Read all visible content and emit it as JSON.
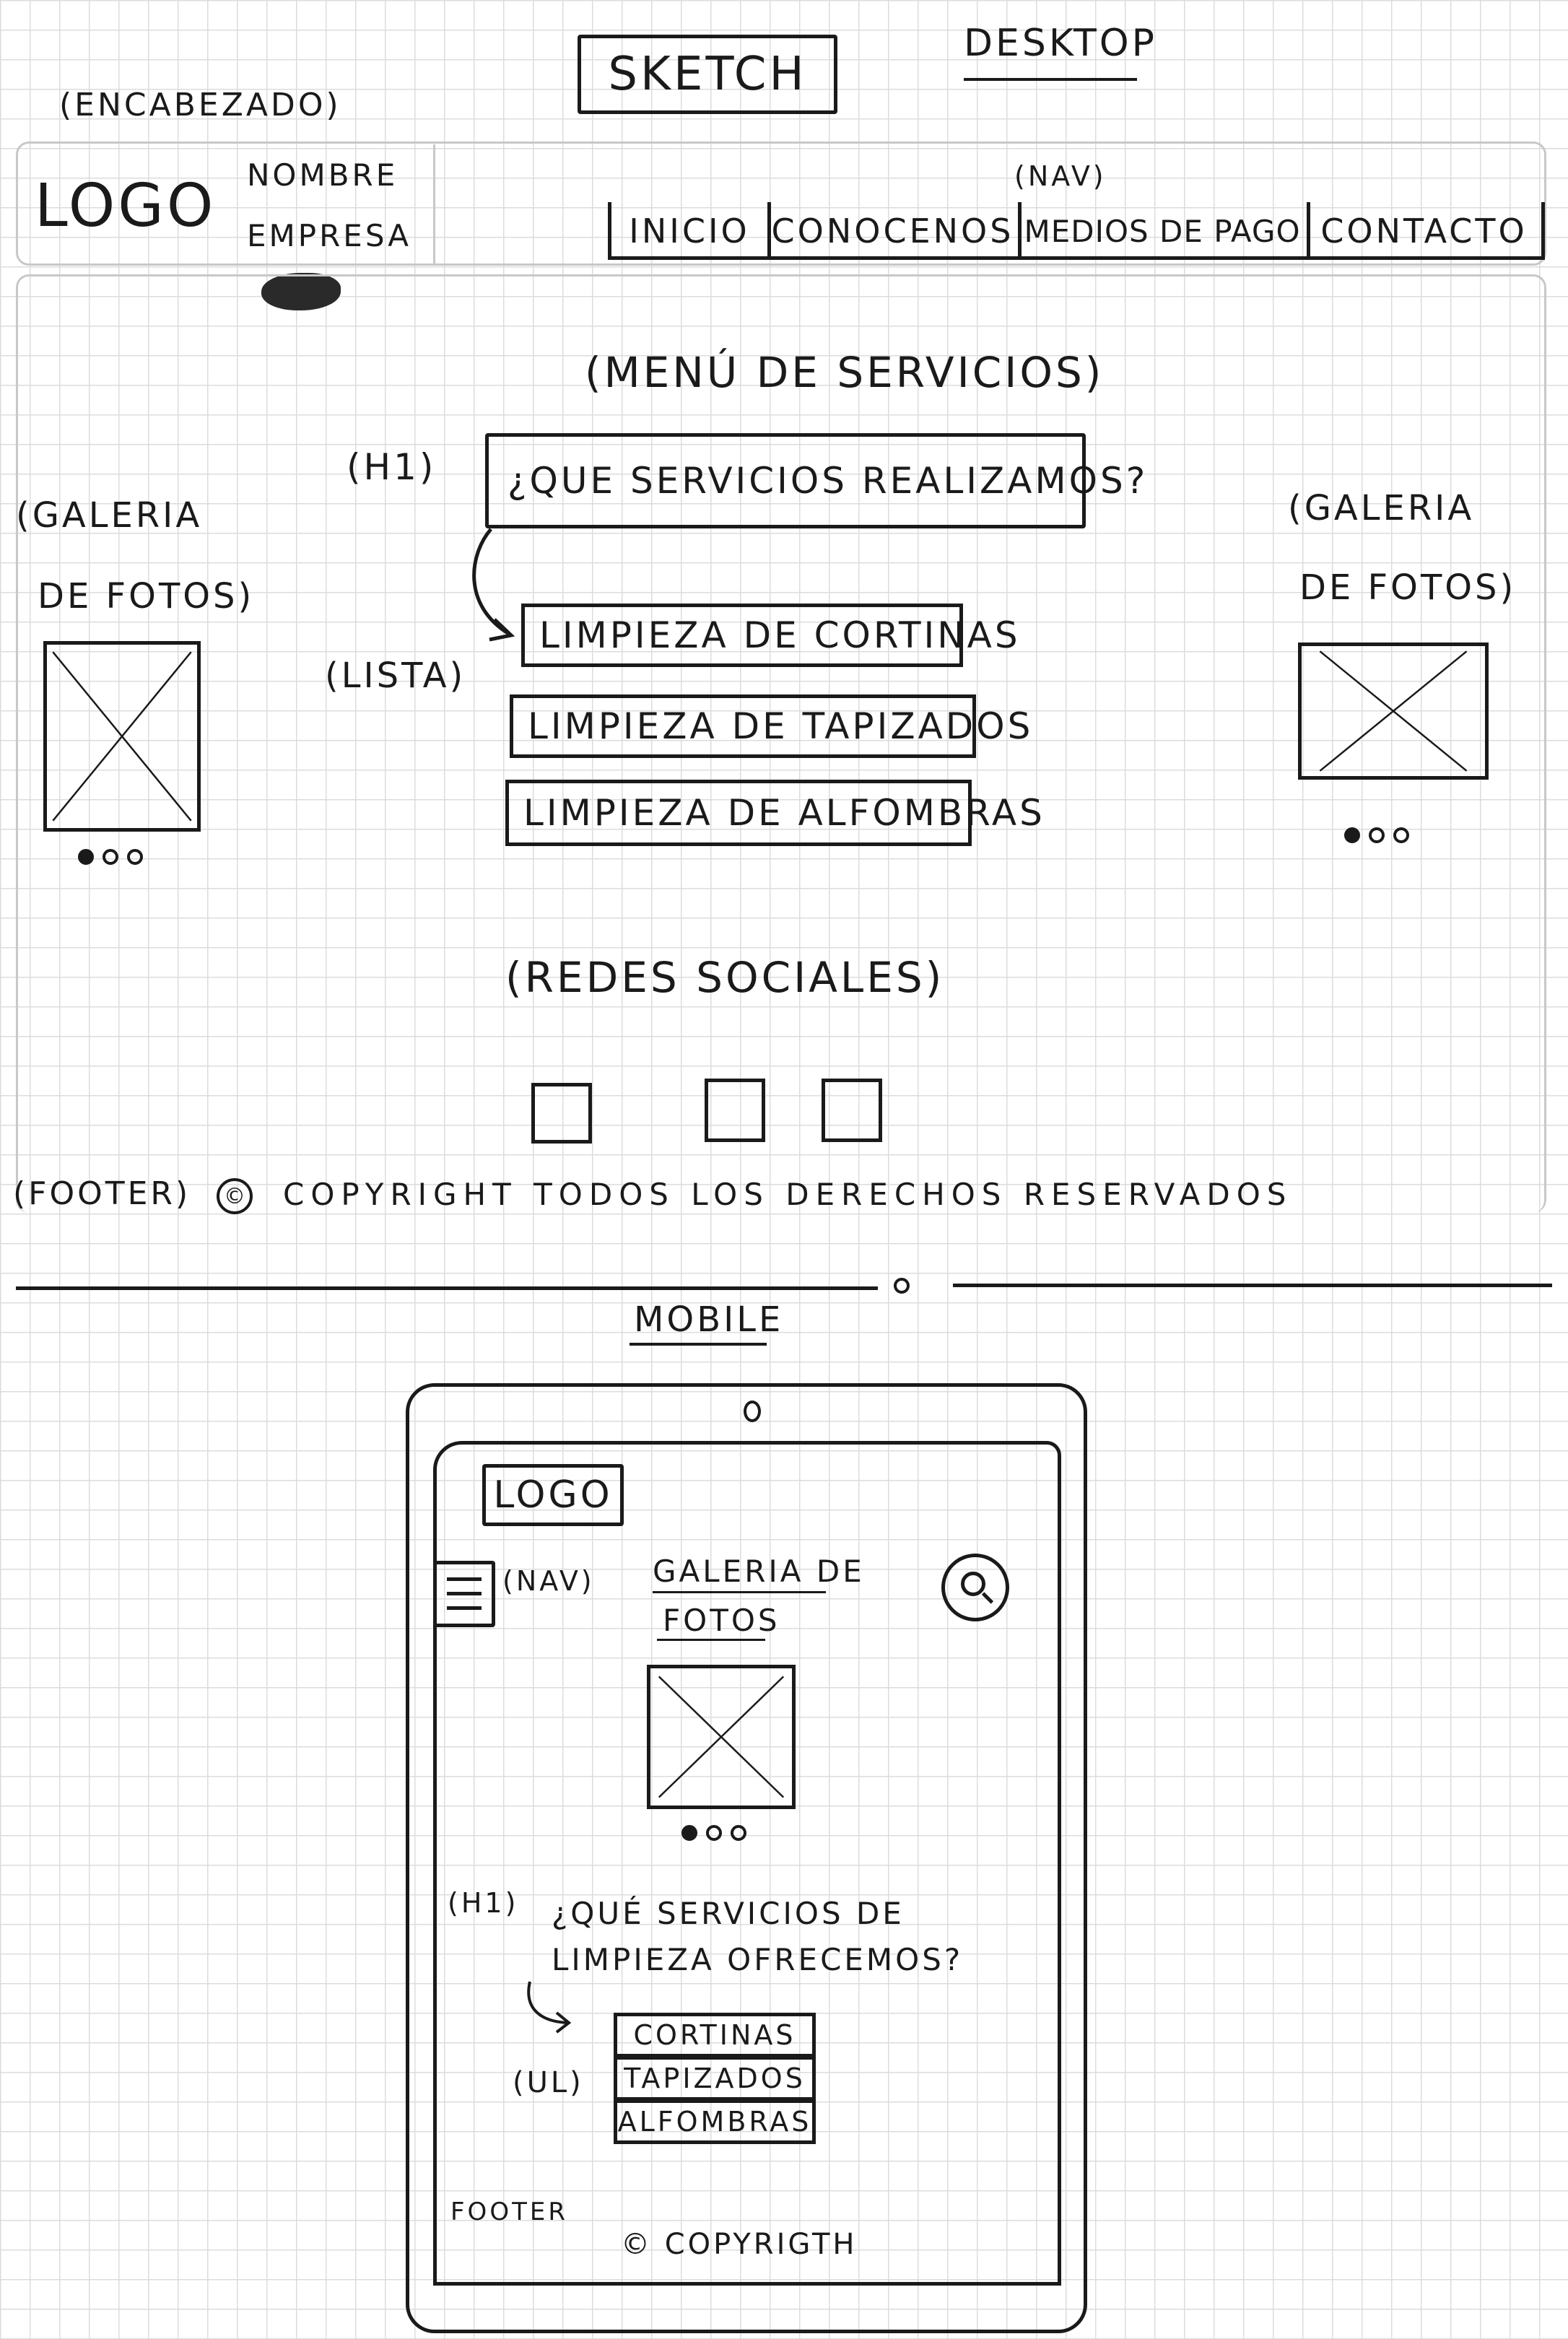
{
  "title": "SKETCH",
  "desktop": {
    "label": "DESKTOP",
    "header_note": "(ENCABEZADO)",
    "logo": "LOGO",
    "company_line1": "NOMBRE",
    "company_line2": "EMPRESA",
    "nav_note": "(NAV)",
    "nav_items": [
      "INICIO",
      "CONOCENOS",
      "MEDIOS DE PAGO",
      "CONTACTO"
    ],
    "menu_note": "(MENÚ DE SERVICIOS)",
    "h1_note": "(H1)",
    "h1_text": "¿QUE SERVICIOS REALIZAMOS?",
    "list_note": "(LISTA)",
    "list_items": [
      "LIMPIEZA DE CORTINAS",
      "LIMPIEZA DE TAPIZADOS",
      "LIMPIEZA DE ALFOMBRAS"
    ],
    "gallery_left_line1": "(GALERIA",
    "gallery_left_line2": "DE FOTOS)",
    "gallery_right_line1": "(GALERIA",
    "gallery_right_line2": "DE FOTOS)",
    "social_note": "(REDES SOCIALES)",
    "footer_note": "(FOOTER)",
    "footer_symbol": "©",
    "footer_text": "COPYRIGHT TODOS LOS DERECHOS RESERVADOS"
  },
  "mobile": {
    "label": "MOBILE",
    "logo": "LOGO",
    "nav_note": "(NAV)",
    "gallery_line1": "GALERIA DE",
    "gallery_line2": "FOTOS",
    "h1_note": "(H1)",
    "h1_line1": "¿QUÉ SERVICIOS DE",
    "h1_line2": "LIMPIEZA OFRECEMOS?",
    "ul_note": "(UL)",
    "list_items": [
      "CORTINAS",
      "TAPIZADOS",
      "ALFOMBRAS"
    ],
    "footer_note": "FOOTER",
    "footer_text": "© COPYRIGTH"
  }
}
